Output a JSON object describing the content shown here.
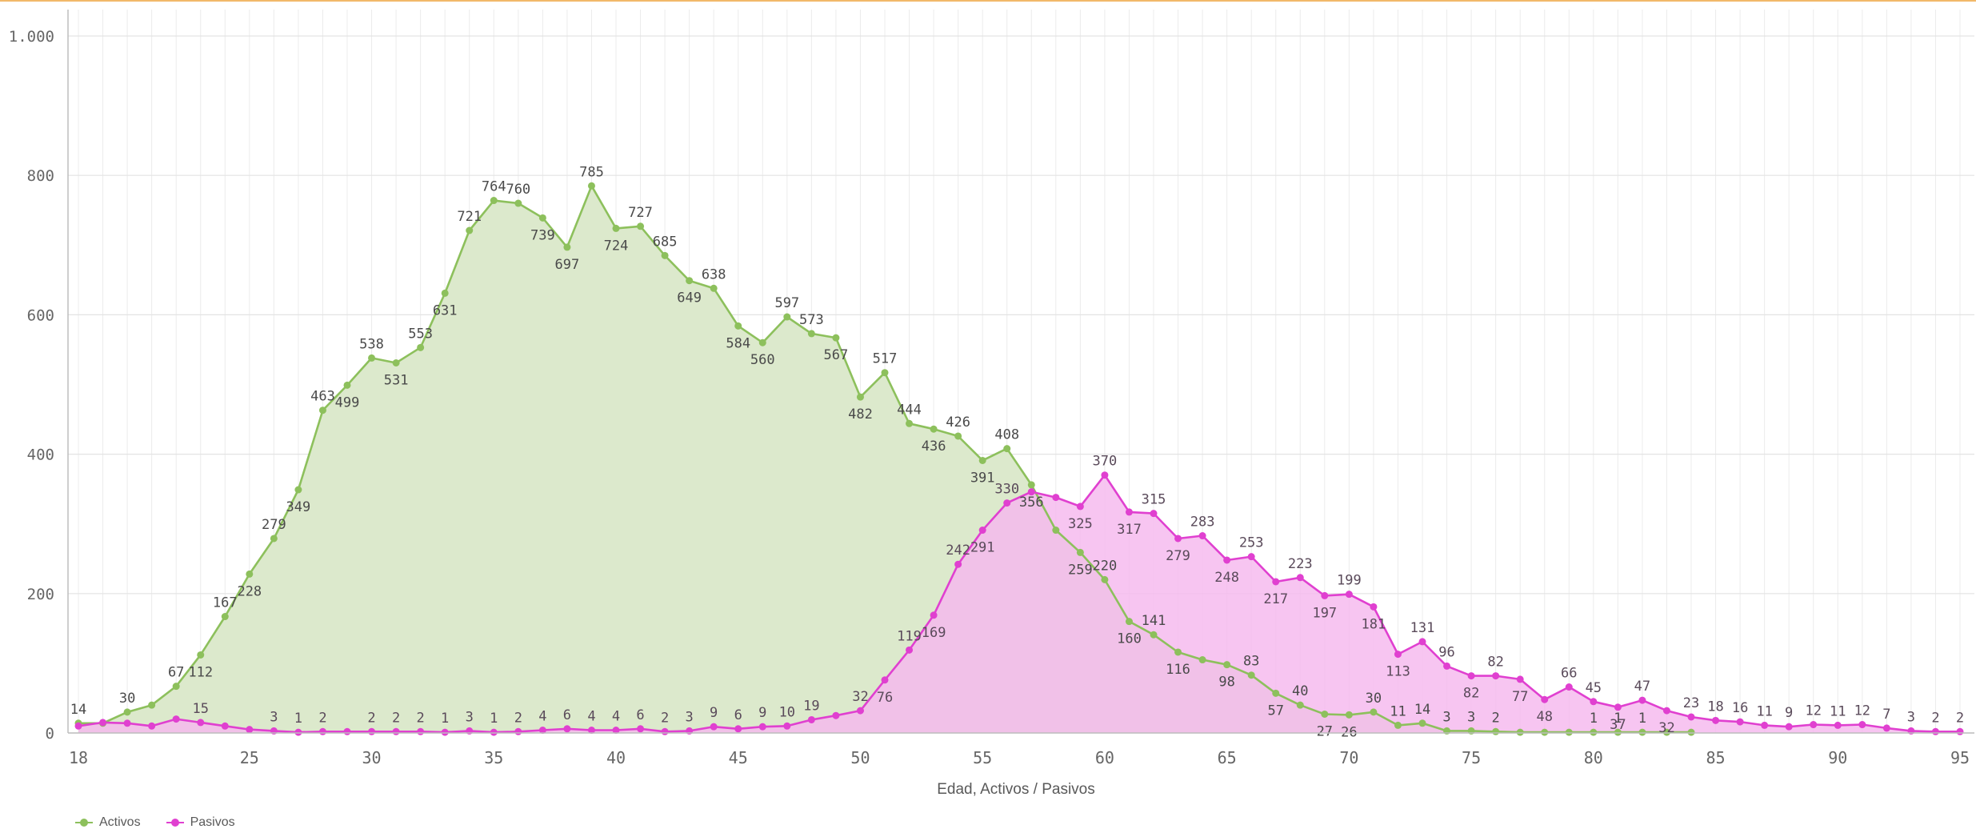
{
  "chart_data": {
    "type": "area",
    "xlabel": "Edad, Activos / Pasivos",
    "ylabel": "",
    "xlim": [
      18,
      95
    ],
    "ylim": [
      0,
      1000
    ],
    "grid": true,
    "legend_placement": "bottom-left",
    "y_ticks": [
      0,
      200,
      400,
      600,
      800,
      1000
    ],
    "y_tick_labels": [
      "0",
      "200",
      "400",
      "600",
      "800",
      "1.000"
    ],
    "x_ticks": [
      18,
      25,
      30,
      35,
      40,
      45,
      50,
      55,
      60,
      65,
      70,
      75,
      80,
      85,
      90,
      95
    ],
    "series": [
      {
        "name": "Activos",
        "color": "#8dc05c",
        "fill": "#dce9cc",
        "x": [
          18,
          19,
          20,
          21,
          22,
          23,
          24,
          25,
          26,
          27,
          28,
          29,
          30,
          31,
          32,
          33,
          34,
          35,
          36,
          37,
          38,
          39,
          40,
          41,
          42,
          43,
          44,
          45,
          46,
          47,
          48,
          49,
          50,
          51,
          52,
          53,
          54,
          55,
          56,
          57,
          58,
          59,
          60,
          61,
          62,
          63,
          64,
          65,
          66,
          67,
          68,
          69,
          70,
          71,
          72,
          73,
          74,
          75,
          76,
          77,
          78,
          79,
          80,
          81,
          82,
          83,
          84
        ],
        "values": [
          14,
          14,
          30,
          40,
          67,
          112,
          167,
          228,
          279,
          349,
          463,
          499,
          538,
          531,
          553,
          631,
          721,
          764,
          760,
          739,
          697,
          785,
          724,
          727,
          685,
          649,
          638,
          584,
          560,
          597,
          573,
          567,
          482,
          517,
          444,
          436,
          426,
          391,
          408,
          356,
          291,
          259,
          220,
          160,
          141,
          116,
          105,
          98,
          83,
          57,
          40,
          27,
          26,
          30,
          11,
          14,
          3,
          3,
          2,
          1,
          1,
          1,
          1,
          1,
          1,
          1,
          1
        ],
        "labels": [
          "14",
          "",
          "30",
          "",
          "67",
          "112",
          "167",
          "228",
          "279",
          "349",
          "463",
          "499",
          "538",
          "531",
          "553",
          "631",
          "721",
          "764",
          "760",
          "739",
          "697",
          "785",
          "724",
          "727",
          "685",
          "649",
          "638",
          "584",
          "560",
          "597",
          "573",
          "567",
          "482",
          "517",
          "444",
          "436",
          "426",
          "391",
          "408",
          "356",
          "",
          "259",
          "220",
          "160",
          "141",
          "116",
          "",
          "98",
          "83",
          "57",
          "40",
          "27",
          "26",
          "30",
          "11",
          "14",
          "3",
          "3",
          "2",
          "",
          "",
          "",
          "1",
          "1",
          "1",
          "",
          ""
        ]
      },
      {
        "name": "Pasivos",
        "color": "#e040d0",
        "fill": "#f5b8ee",
        "x": [
          18,
          19,
          20,
          21,
          22,
          23,
          24,
          25,
          26,
          27,
          28,
          29,
          30,
          31,
          32,
          33,
          34,
          35,
          36,
          37,
          38,
          39,
          40,
          41,
          42,
          43,
          44,
          45,
          46,
          47,
          48,
          49,
          50,
          51,
          52,
          53,
          54,
          55,
          56,
          57,
          58,
          59,
          60,
          61,
          62,
          63,
          64,
          65,
          66,
          67,
          68,
          69,
          70,
          71,
          72,
          73,
          74,
          75,
          76,
          77,
          78,
          79,
          80,
          81,
          82,
          83,
          84,
          85,
          86,
          87,
          88,
          89,
          90,
          91,
          92,
          93,
          94,
          95
        ],
        "values": [
          10,
          15,
          14,
          10,
          20,
          15,
          10,
          5,
          3,
          1,
          2,
          2,
          2,
          2,
          2,
          1,
          3,
          1,
          2,
          4,
          6,
          4,
          4,
          6,
          2,
          3,
          9,
          6,
          9,
          10,
          19,
          25,
          32,
          76,
          119,
          169,
          242,
          291,
          330,
          346,
          338,
          325,
          370,
          317,
          315,
          279,
          283,
          248,
          253,
          217,
          223,
          197,
          199,
          181,
          113,
          131,
          96,
          82,
          82,
          77,
          48,
          66,
          45,
          37,
          47,
          32,
          23,
          18,
          16,
          11,
          9,
          12,
          11,
          12,
          7,
          3,
          2,
          2
        ],
        "labels": [
          "",
          "",
          "",
          "",
          "",
          "15",
          "",
          "",
          "3",
          "1",
          "2",
          "",
          "2",
          "2",
          "2",
          "1",
          "3",
          "1",
          "2",
          "4",
          "6",
          "4",
          "4",
          "6",
          "2",
          "3",
          "9",
          "6",
          "9",
          "10",
          "19",
          "",
          "32",
          "76",
          "119",
          "169",
          "242",
          "291",
          "330",
          "",
          "",
          "325",
          "370",
          "317",
          "315",
          "279",
          "283",
          "248",
          "253",
          "217",
          "223",
          "197",
          "199",
          "181",
          "113",
          "131",
          "96",
          "82",
          "82",
          "77",
          "48",
          "66",
          "45",
          "37",
          "47",
          "32",
          "23",
          "18",
          "16",
          "11",
          "9",
          "12",
          "11",
          "12",
          "7",
          "3",
          "2",
          "2"
        ]
      }
    ]
  }
}
